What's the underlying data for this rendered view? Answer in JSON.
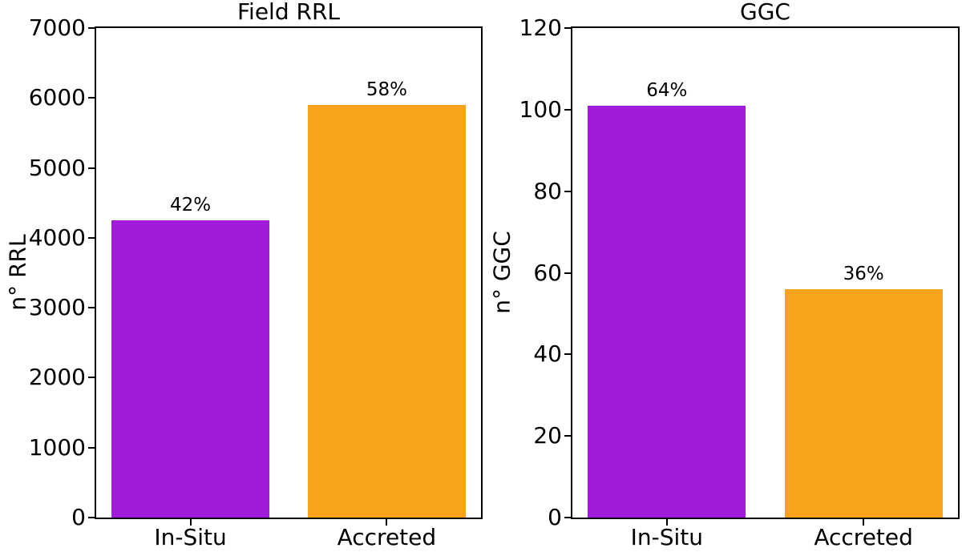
{
  "figure": {
    "background": "#FFFFFF",
    "axis_color": "#000000",
    "text_color": "#000000"
  },
  "colors": {
    "in_situ_purple": "#A21BDB",
    "accreted_orange": "#F9A21B"
  },
  "chart_data": [
    {
      "type": "bar",
      "title": "Field RRL",
      "ylabel": "n° RRL",
      "xlabel": "",
      "categories": [
        "In-Situ",
        "Accreted"
      ],
      "values": [
        4250,
        5900
      ],
      "bar_labels": [
        "42%",
        "58%"
      ],
      "bar_colors": [
        "#A21BDB",
        "#F9A21B"
      ],
      "ylim": [
        0,
        7000
      ],
      "yticks": [
        0,
        1000,
        2000,
        3000,
        4000,
        5000,
        6000,
        7000
      ],
      "grid": false,
      "legend": "none"
    },
    {
      "type": "bar",
      "title": "GGC",
      "ylabel": "n° GGC",
      "xlabel": "",
      "categories": [
        "In-Situ",
        "Accreted"
      ],
      "values": [
        101,
        56
      ],
      "bar_labels": [
        "64%",
        "36%"
      ],
      "bar_colors": [
        "#A21BDB",
        "#F9A21B"
      ],
      "ylim": [
        0,
        120
      ],
      "yticks": [
        0,
        20,
        40,
        60,
        80,
        100,
        120
      ],
      "grid": false,
      "legend": "none"
    }
  ]
}
